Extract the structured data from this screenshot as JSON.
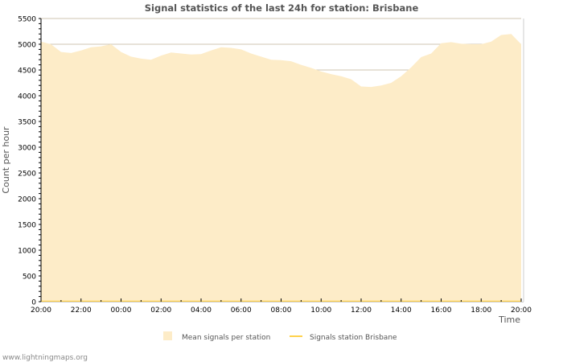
{
  "chart_data": {
    "type": "area",
    "title": "Signal statistics of the last 24h for station: Brisbane",
    "xlabel": "Time",
    "ylabel": "Count per hour",
    "ylim": [
      0,
      5500
    ],
    "yticks": [
      0,
      500,
      1000,
      1500,
      2000,
      2500,
      3000,
      3500,
      4000,
      4500,
      5000,
      5500
    ],
    "xticks": [
      "20:00",
      "22:00",
      "00:00",
      "02:00",
      "04:00",
      "06:00",
      "08:00",
      "10:00",
      "12:00",
      "14:00",
      "16:00",
      "18:00",
      "20:00"
    ],
    "x_hours": [
      0,
      0.5,
      1,
      1.5,
      2,
      2.5,
      3,
      3.5,
      4,
      4.5,
      5,
      5.5,
      6,
      6.5,
      7,
      7.5,
      8,
      8.5,
      9,
      9.5,
      10,
      10.5,
      11,
      11.5,
      12,
      12.5,
      13,
      13.5,
      14,
      14.5,
      15,
      15.5,
      16,
      16.5,
      17,
      17.5,
      18,
      18.5,
      19,
      19.5,
      20,
      20.5,
      21,
      21.5,
      22,
      22.5,
      23,
      23.5,
      24
    ],
    "series": [
      {
        "name": "Mean signals per station",
        "color": "#fdecc8",
        "values": [
          5050,
          5000,
          4850,
          4830,
          4880,
          4940,
          4960,
          5000,
          4850,
          4760,
          4720,
          4700,
          4780,
          4840,
          4820,
          4800,
          4810,
          4880,
          4940,
          4930,
          4900,
          4820,
          4760,
          4700,
          4690,
          4670,
          4600,
          4540,
          4470,
          4420,
          4380,
          4320,
          4180,
          4170,
          4200,
          4250,
          4380,
          4550,
          4750,
          4820,
          5020,
          5040,
          5010,
          5000,
          5000,
          5050,
          5180,
          5200,
          5000
        ]
      },
      {
        "name": "Signals station Brisbane",
        "color": "#ffd24d",
        "values": [
          0,
          0,
          0,
          0,
          0,
          0,
          0,
          0,
          0,
          0,
          0,
          0,
          0,
          0,
          0,
          0,
          0,
          0,
          0,
          0,
          0,
          0,
          0,
          0,
          0,
          0,
          0,
          0,
          0,
          0,
          0,
          0,
          0,
          0,
          0,
          0,
          0,
          0,
          0,
          0,
          0,
          0,
          0,
          0,
          0,
          0,
          0,
          0,
          0
        ]
      }
    ],
    "grid": true,
    "legend": "bottom-center"
  },
  "footer": "www.lightningmaps.org"
}
